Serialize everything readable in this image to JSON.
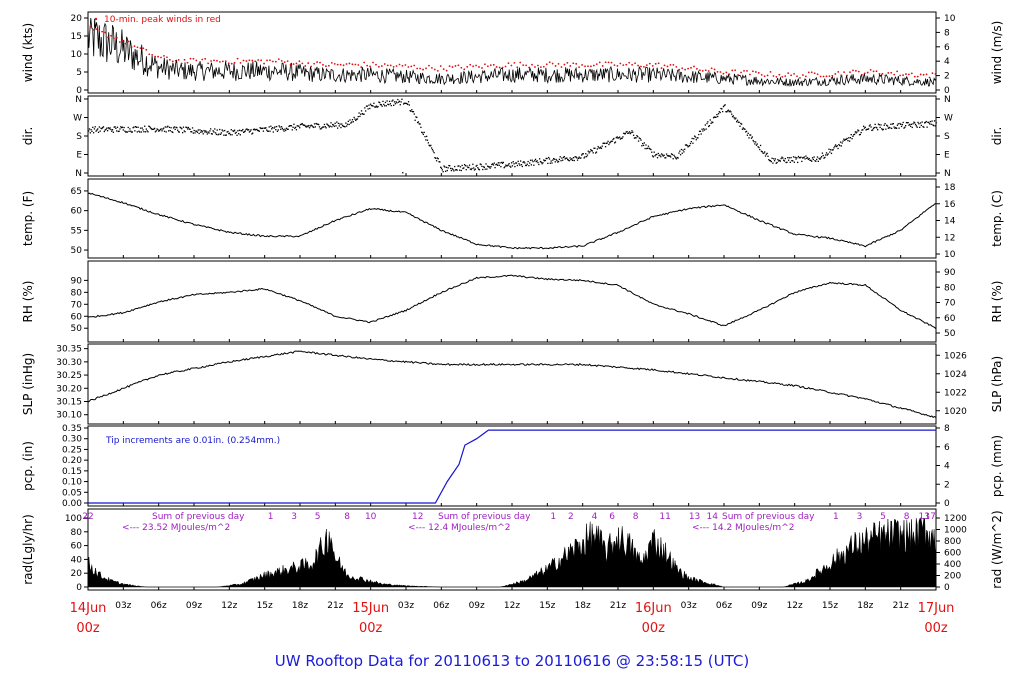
{
  "title": "UW Rooftop Data for 20110613  to  20110616 @ 23:58:15  (UTC)",
  "colors": {
    "series": "#000000",
    "peak": "#e01010",
    "precip": "#1616d0",
    "annot": "#a020c0",
    "date": "#e21111",
    "title": "#1b1bd8"
  },
  "x_axis": {
    "hour_ticks": [
      "03z",
      "06z",
      "09z",
      "12z",
      "15z",
      "18z",
      "21z",
      "03z",
      "06z",
      "09z",
      "12z",
      "15z",
      "18z",
      "21z",
      "03z",
      "06z",
      "09z",
      "12z",
      "15z",
      "18z",
      "21z"
    ],
    "day_labels": [
      {
        "day": "14Jun",
        "hour": "00z"
      },
      {
        "day": "15Jun",
        "hour": "00z"
      },
      {
        "day": "16Jun",
        "hour": "00z"
      },
      {
        "day": "17Jun",
        "hour": "00z"
      }
    ]
  },
  "chart_data": [
    {
      "type": "line",
      "name": "wind",
      "ylabel_left": "wind (kts)",
      "ylabel_right": "wind (m/s)",
      "yticks_left": [
        0,
        5,
        10,
        15,
        20
      ],
      "yticks_right": [
        0,
        2,
        4,
        6,
        8,
        10
      ],
      "ylim": [
        0,
        20
      ],
      "annotation": "10-min. peak winds in red",
      "x_hours": [
        0,
        2,
        4,
        6,
        8,
        12,
        16,
        20,
        24,
        30,
        36,
        42,
        48,
        54,
        60,
        66,
        72
      ],
      "y": [
        14,
        12,
        9,
        6,
        5,
        5,
        5,
        4,
        4,
        3,
        4,
        4,
        4,
        3,
        2,
        3,
        2
      ],
      "peak": [
        17,
        15,
        12,
        9,
        8,
        8,
        8,
        7,
        7,
        6,
        7,
        7,
        7,
        5,
        4,
        5,
        4
      ]
    },
    {
      "type": "scatter",
      "name": "direction",
      "ylabel_left": "dir.",
      "ylabel_right": "dir.",
      "yticks_left": [
        "N",
        "E",
        "S",
        "W",
        "N"
      ],
      "yticks_right": [
        "N",
        "E",
        "S",
        "W",
        "N"
      ],
      "ylim": [
        0,
        360
      ],
      "x_hours": [
        0,
        6,
        12,
        18,
        22,
        24,
        27,
        30,
        36,
        42,
        46,
        48,
        50,
        54,
        58,
        62,
        66,
        72
      ],
      "y": [
        210,
        215,
        195,
        225,
        235,
        330,
        350,
        20,
        40,
        80,
        200,
        90,
        80,
        320,
        60,
        70,
        220,
        240
      ]
    },
    {
      "type": "line",
      "name": "temperature",
      "ylabel_left": "temp. (F)",
      "ylabel_right": "temp. (C)",
      "yticks_left": [
        50,
        55,
        60,
        65
      ],
      "yticks_right": [
        10,
        12,
        14,
        16,
        18
      ],
      "ylim": [
        49,
        66
      ],
      "x_hours": [
        0,
        3,
        6,
        9,
        12,
        15,
        18,
        21,
        24,
        27,
        30,
        33,
        36,
        39,
        42,
        45,
        48,
        51,
        54,
        57,
        60,
        63,
        66,
        69,
        72
      ],
      "y": [
        64.5,
        62,
        59,
        56.5,
        54.5,
        53.5,
        53.5,
        57.5,
        60.5,
        59.5,
        55,
        51.5,
        50.5,
        50.5,
        51,
        54.5,
        58.5,
        60.5,
        61.5,
        57.5,
        54,
        53,
        51,
        55,
        62
      ]
    },
    {
      "type": "line",
      "name": "relative humidity",
      "ylabel_left": "RH (%)",
      "ylabel_right": "RH (%)",
      "yticks_left": [
        50,
        60,
        70,
        80,
        90
      ],
      "yticks_right": [
        50,
        60,
        70,
        80,
        90
      ],
      "ylim": [
        46,
        97
      ],
      "x_hours": [
        0,
        3,
        6,
        9,
        12,
        15,
        18,
        21,
        24,
        27,
        30,
        33,
        36,
        39,
        42,
        45,
        48,
        51,
        54,
        57,
        60,
        63,
        66,
        69,
        72
      ],
      "y": [
        59,
        63,
        72,
        78,
        80,
        83,
        73,
        60,
        55,
        65,
        80,
        92,
        94,
        91,
        90,
        86,
        70,
        62,
        52,
        65,
        80,
        88,
        86,
        65,
        50
      ]
    },
    {
      "type": "line",
      "name": "sea level pressure",
      "ylabel_left": "SLP (inHg)",
      "ylabel_right": "SLP (hPa)",
      "yticks_left": [
        30.1,
        30.15,
        30.2,
        30.25,
        30.3,
        30.35
      ],
      "yticks_right": [
        1020,
        1022,
        1024,
        1026
      ],
      "ylim": [
        30.08,
        30.36
      ],
      "x_hours": [
        0,
        6,
        12,
        18,
        24,
        30,
        36,
        42,
        48,
        54,
        60,
        66,
        72
      ],
      "y": [
        30.15,
        30.25,
        30.3,
        30.34,
        30.31,
        30.29,
        30.29,
        30.29,
        30.27,
        30.24,
        30.21,
        30.16,
        30.09
      ]
    },
    {
      "type": "line",
      "name": "precipitation",
      "ylabel_left": "pcp. (in)",
      "ylabel_right": "pcp. (mm)",
      "yticks_left": [
        0,
        0.05,
        0.1,
        0.15,
        0.2,
        0.25,
        0.3,
        0.35
      ],
      "yticks_right": [
        0,
        2,
        4,
        6,
        8
      ],
      "ylim": [
        0,
        0.35
      ],
      "annotation": "Tip increments are 0.01in. (0.254mm.)",
      "x_hours": [
        0,
        29.5,
        30.5,
        31.5,
        32,
        33,
        34,
        72
      ],
      "y": [
        0,
        0,
        0.1,
        0.18,
        0.27,
        0.3,
        0.34,
        0.34
      ]
    },
    {
      "type": "area",
      "name": "radiation",
      "ylabel_left": "rad(Lgly/hr)",
      "ylabel_right": "rad (W/m^2)",
      "yticks_left": [
        0,
        20,
        40,
        60,
        80,
        100
      ],
      "yticks_right": [
        0,
        200,
        400,
        600,
        800,
        1000,
        1200
      ],
      "ylim": [
        0,
        100
      ],
      "x_hours": [
        0,
        1,
        2,
        3,
        4,
        5,
        11,
        13,
        15,
        17,
        19,
        20,
        20.5,
        21,
        22,
        23,
        24,
        25,
        27,
        30,
        35,
        37,
        39,
        41,
        43,
        44,
        45,
        46,
        47,
        48,
        49,
        50,
        51,
        54,
        59,
        61,
        63,
        65,
        67,
        69,
        70,
        71,
        72
      ],
      "y": [
        40,
        20,
        10,
        5,
        2,
        0,
        0,
        5,
        20,
        30,
        40,
        70,
        95,
        50,
        20,
        15,
        10,
        5,
        2,
        0,
        0,
        10,
        30,
        60,
        90,
        60,
        85,
        70,
        40,
        80,
        60,
        30,
        15,
        0,
        0,
        10,
        40,
        70,
        85,
        90,
        85,
        100,
        80
      ],
      "hour_labels": [
        "22",
        "1",
        "3",
        "5",
        "8",
        "10",
        "12",
        "1",
        "2",
        "4",
        "6",
        "8",
        "11",
        "13",
        "14",
        "1",
        "3",
        "5",
        "8",
        "13",
        "17"
      ],
      "annotations": [
        {
          "text": "Sum of previous day",
          "sub": "<--- 23.52 MJoules/m^2"
        },
        {
          "text": "Sum of previous day",
          "sub": "<--- 12.4 MJoules/m^2"
        },
        {
          "text": "Sum of previous day",
          "sub": "<--- 14.2 MJoules/m^2"
        }
      ]
    }
  ]
}
